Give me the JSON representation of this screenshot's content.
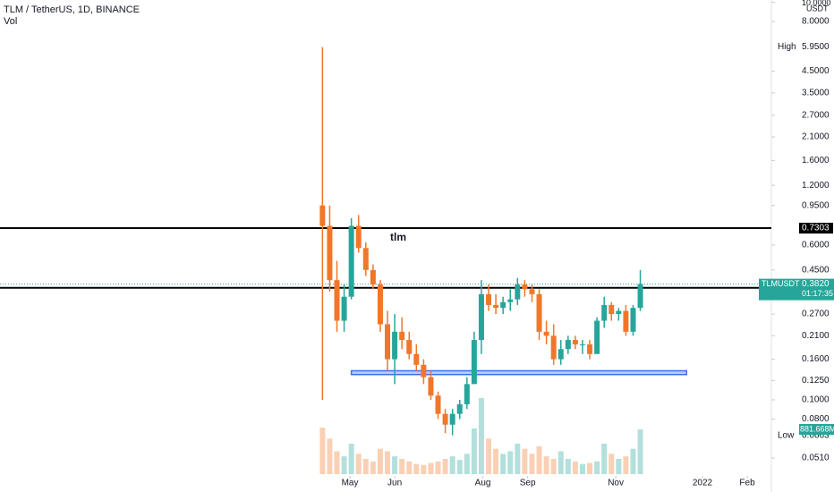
{
  "chart_data": {
    "type": "candlestick",
    "title": "TLM / TetherUS, 1D, BINANCE",
    "subtitle": "Vol",
    "currency": "USDT",
    "log_scale": true,
    "grid": false,
    "colors": {
      "up": "#26a69a",
      "down": "#f0772a"
    },
    "xlim": [
      -121.2,
      412.7
    ],
    "xticks": [
      {
        "value": 121,
        "label": "May"
      },
      {
        "value": 152,
        "label": "Jun"
      },
      {
        "value": 213,
        "label": "Aug"
      },
      {
        "value": 244,
        "label": "Sep"
      },
      {
        "value": 305,
        "label": "Nov"
      },
      {
        "value": 365,
        "label": "2022"
      },
      {
        "value": 396,
        "label": "Feb"
      }
    ],
    "ylim": [
      0.0423,
      10.26
    ],
    "yticks": [
      {
        "value": 10,
        "label": "10.0000"
      },
      {
        "value": 8,
        "label": "8.0000"
      },
      {
        "value": 4.5,
        "label": "4.5000"
      },
      {
        "value": 3.5,
        "label": "3.5000"
      },
      {
        "value": 2.7,
        "label": "2.7000"
      },
      {
        "value": 2.1,
        "label": "2.1000"
      },
      {
        "value": 1.6,
        "label": "1.6000"
      },
      {
        "value": 1.2,
        "label": "1.2000"
      },
      {
        "value": 0.95,
        "label": "0.9500"
      },
      {
        "value": 0.6,
        "label": "0.6000"
      },
      {
        "value": 0.45,
        "label": "0.4500"
      },
      {
        "value": 0.27,
        "label": "0.2700"
      },
      {
        "value": 0.21,
        "label": "0.2100"
      },
      {
        "value": 0.16,
        "label": "0.1600"
      },
      {
        "value": 0.125,
        "label": "0.1250"
      },
      {
        "value": 0.1,
        "label": "0.1000"
      },
      {
        "value": 0.08,
        "label": "0.0800"
      },
      {
        "value": 0.051,
        "label": "0.0510"
      }
    ],
    "high": {
      "name": "High",
      "value": 5.95,
      "label": "5.9500"
    },
    "low": {
      "name": "Low",
      "value": 0.0663,
      "label": "0.0663"
    },
    "hlines": [
      {
        "value": 0.7303,
        "label": "0.7303"
      },
      {
        "value": 0.3657,
        "label": "0.3657"
      }
    ],
    "last_price": {
      "name": "TLMUSDT",
      "value": 0.382,
      "label": "0.3820",
      "countdown": "01:17:35"
    },
    "annotation": "tlm",
    "support_zone": {
      "low": 0.134,
      "high": 0.14,
      "x": [
        122,
        354
      ],
      "color": "#3d6cf0"
    },
    "x": [
      102,
      107,
      112,
      117,
      122,
      127,
      132,
      137,
      142,
      147,
      152,
      157,
      162,
      167,
      172,
      177,
      182,
      187,
      192,
      197,
      202,
      207,
      212,
      217,
      222,
      227,
      232,
      237,
      242,
      247,
      252,
      257,
      262,
      267,
      272,
      277,
      282,
      287,
      292,
      297,
      302,
      307,
      312,
      317,
      322
    ],
    "open": [
      0.95,
      0.75,
      0.4,
      0.25,
      0.33,
      0.75,
      0.58,
      0.45,
      0.38,
      0.24,
      0.16,
      0.22,
      0.2,
      0.17,
      0.15,
      0.13,
      0.105,
      0.085,
      0.075,
      0.085,
      0.095,
      0.12,
      0.2,
      0.34,
      0.3,
      0.29,
      0.31,
      0.32,
      0.38,
      0.36,
      0.34,
      0.22,
      0.21,
      0.16,
      0.18,
      0.2,
      0.19,
      0.19,
      0.17,
      0.25,
      0.3,
      0.27,
      0.28,
      0.22,
      0.29
    ],
    "high_values": [
      5.95,
      0.95,
      0.5,
      0.38,
      0.82,
      0.85,
      0.62,
      0.48,
      0.4,
      0.28,
      0.27,
      0.26,
      0.22,
      0.19,
      0.16,
      0.14,
      0.11,
      0.09,
      0.09,
      0.1,
      0.13,
      0.22,
      0.4,
      0.38,
      0.34,
      0.33,
      0.36,
      0.41,
      0.4,
      0.38,
      0.36,
      0.25,
      0.24,
      0.2,
      0.21,
      0.21,
      0.2,
      0.2,
      0.26,
      0.33,
      0.31,
      0.29,
      0.3,
      0.3,
      0.45
    ],
    "low_values": [
      0.1,
      0.35,
      0.22,
      0.22,
      0.32,
      0.55,
      0.42,
      0.36,
      0.22,
      0.14,
      0.12,
      0.18,
      0.16,
      0.14,
      0.12,
      0.1,
      0.08,
      0.068,
      0.0663,
      0.08,
      0.09,
      0.12,
      0.17,
      0.28,
      0.27,
      0.27,
      0.28,
      0.3,
      0.33,
      0.31,
      0.2,
      0.19,
      0.15,
      0.15,
      0.17,
      0.18,
      0.17,
      0.16,
      0.17,
      0.23,
      0.25,
      0.25,
      0.21,
      0.21,
      0.28
    ],
    "close": [
      0.75,
      0.4,
      0.25,
      0.33,
      0.75,
      0.58,
      0.45,
      0.38,
      0.24,
      0.16,
      0.22,
      0.2,
      0.17,
      0.15,
      0.13,
      0.105,
      0.085,
      0.075,
      0.085,
      0.095,
      0.12,
      0.2,
      0.34,
      0.3,
      0.29,
      0.31,
      0.32,
      0.38,
      0.36,
      0.34,
      0.22,
      0.21,
      0.16,
      0.18,
      0.2,
      0.19,
      0.19,
      0.17,
      0.25,
      0.3,
      0.27,
      0.28,
      0.22,
      0.29,
      0.382
    ],
    "volume": [
      917,
      700,
      450,
      350,
      600,
      400,
      300,
      250,
      500,
      450,
      350,
      300,
      250,
      200,
      180,
      220,
      250,
      300,
      350,
      280,
      400,
      900,
      1500,
      700,
      500,
      400,
      450,
      600,
      500,
      400,
      550,
      350,
      300,
      450,
      300,
      250,
      200,
      220,
      250,
      600,
      400,
      300,
      350,
      500,
      881.668
    ],
    "volume_lim": [
      0,
      9346
    ],
    "volume_label": {
      "value": 881.668,
      "label": "881.668M"
    }
  }
}
